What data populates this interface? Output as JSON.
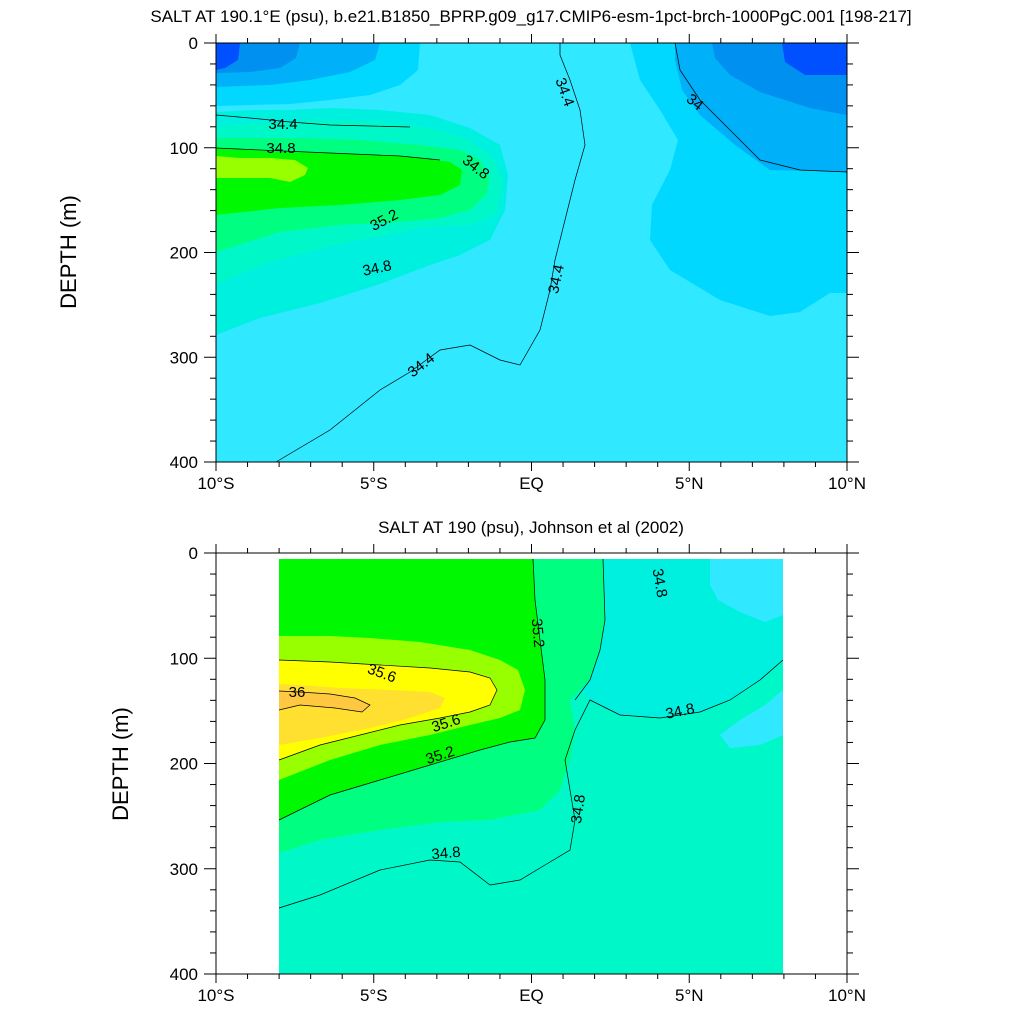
{
  "chart_data": [
    {
      "type": "contour",
      "title": "SALT AT 190.1°E (psu), b.e21.B1850_BPRP.g09_g17.CMIP6-esm-1pct-brch-1000PgC.001 [198-217]",
      "xlabel": "",
      "ylabel": "DEPTH (m)",
      "x_ticks": [
        "10°S",
        "5°S",
        "EQ",
        "5°N",
        "10°N"
      ],
      "x_range_lat": [
        -10,
        10
      ],
      "y_ticks": [
        "0",
        "100",
        "200",
        "300",
        "400"
      ],
      "y_range_m": [
        0,
        400
      ],
      "y_inverted": true,
      "data_lat_range": [
        -10,
        10
      ],
      "contour_labels": [
        {
          "text": "34.4",
          "lat": -8.6,
          "depth": 73
        },
        {
          "text": "34.8",
          "lat": -8.6,
          "depth": 98
        },
        {
          "text": "34.8",
          "lat": -1.8,
          "depth": 112
        },
        {
          "text": "35.2",
          "lat": -4.9,
          "depth": 175
        },
        {
          "text": "34.8",
          "lat": -5.2,
          "depth": 215
        },
        {
          "text": "34.4",
          "lat": -3.5,
          "depth": 315
        },
        {
          "text": "34.4",
          "lat": 1.1,
          "depth": 44
        },
        {
          "text": "34.4",
          "lat": 0.7,
          "depth": 222
        },
        {
          "text": "34",
          "lat": 5.2,
          "depth": 56
        }
      ],
      "notes": "color-filled salinity contours; low salinity (blue) near surface at edges, salinity maximum (green) near 9°S at 160 m"
    },
    {
      "type": "contour",
      "title": "SALT AT 190 (psu), Johnson et al (2002)",
      "xlabel": "",
      "ylabel": "DEPTH (m)",
      "x_ticks": [
        "10°S",
        "5°S",
        "EQ",
        "5°N",
        "10°N"
      ],
      "x_range_lat": [
        -10,
        10
      ],
      "y_ticks": [
        "0",
        "100",
        "200",
        "300",
        "400"
      ],
      "y_range_m": [
        0,
        400
      ],
      "y_inverted": true,
      "data_lat_range": [
        -8,
        8
      ],
      "contour_labels": [
        {
          "text": "34.8",
          "lat": 4.1,
          "depth": 28
        },
        {
          "text": "35.2",
          "lat": 0.2,
          "depth": 75
        },
        {
          "text": "35.6",
          "lat": -4.7,
          "depth": 113
        },
        {
          "text": "36",
          "lat": -9.3,
          "depth": 129
        },
        {
          "text": "35.6",
          "lat": -2.7,
          "depth": 160
        },
        {
          "text": "35.2",
          "lat": -2.9,
          "depth": 190
        },
        {
          "text": "34.8",
          "lat": 4.7,
          "depth": 150
        },
        {
          "text": "34.8",
          "lat": 1.5,
          "depth": 245
        },
        {
          "text": "34.8",
          "lat": -2.7,
          "depth": 285
        }
      ],
      "notes": "observed salinity; maximum (orange, >36) near 8°S at 150 m"
    }
  ],
  "colors": {
    "s_33_2": "#0050ff",
    "s_33_6": "#0090f0",
    "s_34_0": "#00b0f8",
    "s_34_2": "#00d8ff",
    "s_34_4": "#30e8ff",
    "s_34_6": "#00f0e0",
    "s_34_8": "#00f8c8",
    "s_35_0": "#00ff80",
    "s_35_2": "#00f800",
    "s_35_4": "#98ff00",
    "s_35_6": "#ffff00",
    "s_35_8": "#ffe030",
    "s_36_0": "#ffc840"
  }
}
